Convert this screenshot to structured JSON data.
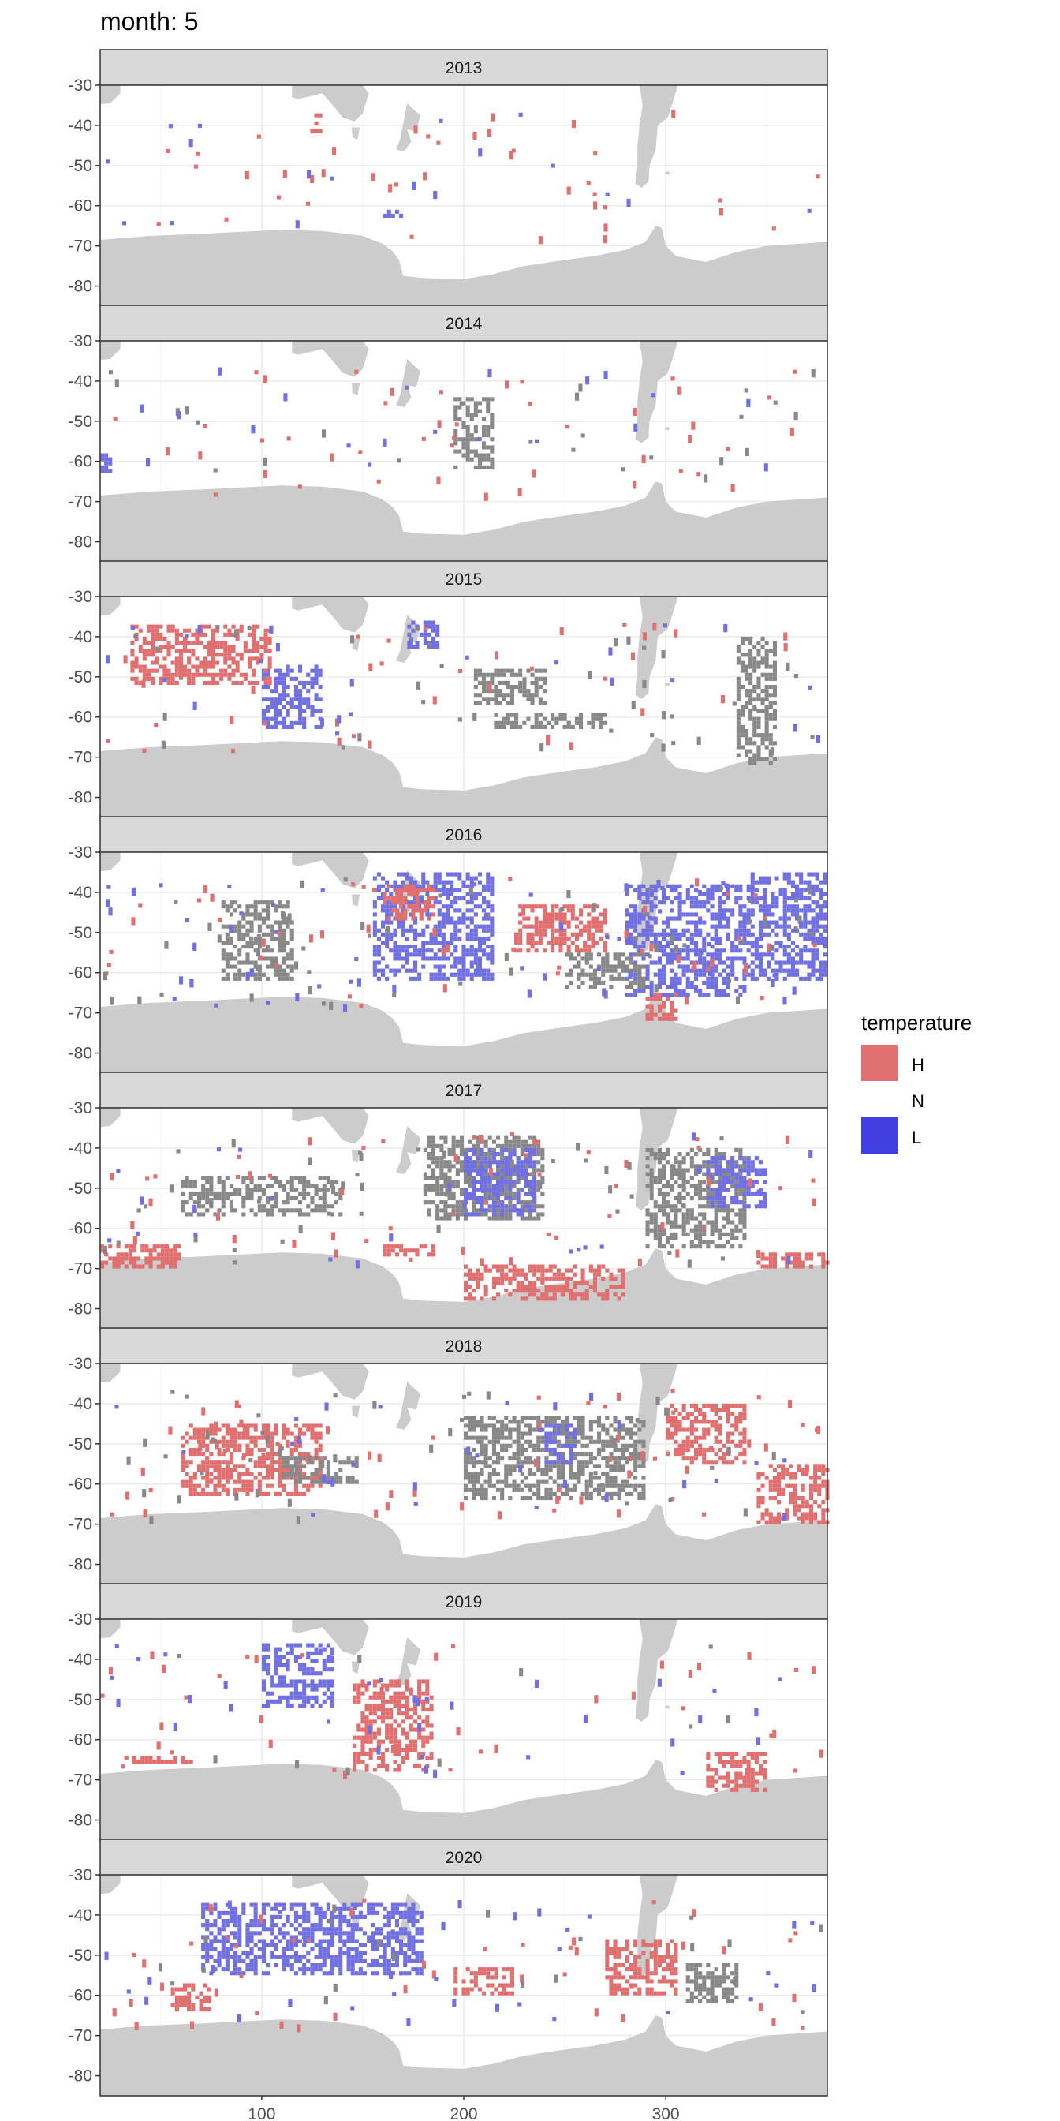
{
  "chart_data": {
    "type": "heatmap",
    "title": "month: 5",
    "facet_variable": "year",
    "facets": [
      "2013",
      "2014",
      "2015",
      "2016",
      "2017",
      "2018",
      "2019",
      "2020"
    ],
    "xlabel": "",
    "ylabel": "",
    "xlim": [
      20,
      380
    ],
    "ylim": [
      -85,
      -30
    ],
    "x_ticks": [
      100,
      200,
      300
    ],
    "y_ticks": [
      -30,
      -40,
      -50,
      -60,
      -70,
      -80
    ],
    "grid": true,
    "legend": {
      "title": "temperature",
      "position": "right",
      "entries": [
        {
          "key": "H",
          "label": "H",
          "color": "#E07070"
        },
        {
          "key": "N",
          "label": "N",
          "color": "#888888"
        },
        {
          "key": "L",
          "label": "L",
          "color": "#7070E0"
        }
      ]
    },
    "colors": {
      "land": "#CCCCCC",
      "strip": "#D9D9D9",
      "panel_border": "#333333",
      "grid": "#EBEBEB"
    },
    "regions": {
      "2013": [
        {
          "cat": "H",
          "lon": [
            48,
            54
          ],
          "lat": [
            -66,
            -64
          ]
        },
        {
          "cat": "H",
          "lon": [
            124,
            130
          ],
          "lat": [
            -42,
            -37
          ]
        },
        {
          "cat": "L",
          "lon": [
            160,
            170
          ],
          "lat": [
            -63,
            -61
          ]
        }
      ],
      "2014": [
        {
          "cat": "N",
          "lon": [
            195,
            215
          ],
          "lat": [
            -62,
            -44
          ]
        },
        {
          "cat": "L",
          "lon": [
            20,
            26
          ],
          "lat": [
            -63,
            -58
          ]
        }
      ],
      "2015": [
        {
          "cat": "L",
          "lon": [
            172,
            188
          ],
          "lat": [
            -43,
            -36
          ]
        },
        {
          "cat": "L",
          "lon": [
            100,
            130
          ],
          "lat": [
            -63,
            -47
          ]
        },
        {
          "cat": "H",
          "lon": [
            35,
            105
          ],
          "lat": [
            -52,
            -37
          ]
        },
        {
          "cat": "N",
          "lon": [
            205,
            240
          ],
          "lat": [
            -57,
            -48
          ]
        },
        {
          "cat": "N",
          "lon": [
            215,
            270
          ],
          "lat": [
            -63,
            -59
          ]
        },
        {
          "cat": "N",
          "lon": [
            335,
            355
          ],
          "lat": [
            -72,
            -40
          ]
        }
      ],
      "2016": [
        {
          "cat": "L",
          "lon": [
            155,
            215
          ],
          "lat": [
            -62,
            -35
          ]
        },
        {
          "cat": "L",
          "lon": [
            280,
            340
          ],
          "lat": [
            -66,
            -38
          ]
        },
        {
          "cat": "H",
          "lon": [
            160,
            185
          ],
          "lat": [
            -47,
            -38
          ]
        },
        {
          "cat": "H",
          "lon": [
            225,
            270
          ],
          "lat": [
            -55,
            -43
          ]
        },
        {
          "cat": "H",
          "lon": [
            290,
            305
          ],
          "lat": [
            -72,
            -65
          ]
        },
        {
          "cat": "N",
          "lon": [
            80,
            115
          ],
          "lat": [
            -62,
            -42
          ]
        },
        {
          "cat": "N",
          "lon": [
            250,
            290
          ],
          "lat": [
            -64,
            -55
          ]
        },
        {
          "cat": "L",
          "lon": [
            340,
            380
          ],
          "lat": [
            -62,
            -35
          ]
        }
      ],
      "2017": [
        {
          "cat": "H",
          "lon": [
            200,
            280
          ],
          "lat": [
            -78,
            -69
          ]
        },
        {
          "cat": "H",
          "lon": [
            20,
            60
          ],
          "lat": [
            -70,
            -64
          ]
        },
        {
          "cat": "H",
          "lon": [
            345,
            380
          ],
          "lat": [
            -70,
            -66
          ]
        },
        {
          "cat": "H",
          "lon": [
            160,
            185
          ],
          "lat": [
            -67,
            -64
          ]
        },
        {
          "cat": "N",
          "lon": [
            180,
            240
          ],
          "lat": [
            -58,
            -37
          ]
        },
        {
          "cat": "N",
          "lon": [
            60,
            140
          ],
          "lat": [
            -57,
            -47
          ]
        },
        {
          "cat": "N",
          "lon": [
            290,
            340
          ],
          "lat": [
            -65,
            -40
          ]
        },
        {
          "cat": "L",
          "lon": [
            200,
            235
          ],
          "lat": [
            -57,
            -40
          ]
        },
        {
          "cat": "L",
          "lon": [
            320,
            350
          ],
          "lat": [
            -55,
            -42
          ]
        }
      ],
      "2018": [
        {
          "cat": "H",
          "lon": [
            345,
            380
          ],
          "lat": [
            -70,
            -55
          ]
        },
        {
          "cat": "H",
          "lon": [
            300,
            340
          ],
          "lat": [
            -55,
            -40
          ]
        },
        {
          "cat": "H",
          "lon": [
            60,
            130
          ],
          "lat": [
            -63,
            -45
          ]
        },
        {
          "cat": "N",
          "lon": [
            110,
            150
          ],
          "lat": [
            -60,
            -53
          ]
        },
        {
          "cat": "N",
          "lon": [
            200,
            290
          ],
          "lat": [
            -64,
            -43
          ]
        },
        {
          "cat": "L",
          "lon": [
            240,
            255
          ],
          "lat": [
            -55,
            -45
          ]
        }
      ],
      "2019": [
        {
          "cat": "H",
          "lon": [
            320,
            350
          ],
          "lat": [
            -73,
            -63
          ]
        },
        {
          "cat": "H",
          "lon": [
            30,
            65
          ],
          "lat": [
            -66,
            -64
          ]
        },
        {
          "cat": "H",
          "lon": [
            145,
            185
          ],
          "lat": [
            -68,
            -45
          ]
        },
        {
          "cat": "L",
          "lon": [
            100,
            135
          ],
          "lat": [
            -52,
            -36
          ]
        }
      ],
      "2020": [
        {
          "cat": "H",
          "lon": [
            270,
            305
          ],
          "lat": [
            -60,
            -46
          ]
        },
        {
          "cat": "H",
          "lon": [
            195,
            225
          ],
          "lat": [
            -60,
            -53
          ]
        },
        {
          "cat": "H",
          "lon": [
            55,
            75
          ],
          "lat": [
            -64,
            -57
          ]
        },
        {
          "cat": "L",
          "lon": [
            70,
            180
          ],
          "lat": [
            -55,
            -37
          ]
        },
        {
          "cat": "N",
          "lon": [
            310,
            335
          ],
          "lat": [
            -62,
            -52
          ]
        }
      ]
    },
    "scatter_counts": {
      "2013": [
        40,
        0,
        18
      ],
      "2014": [
        45,
        25,
        20
      ],
      "2015": [
        40,
        40,
        25
      ],
      "2016": [
        55,
        60,
        60
      ],
      "2017": [
        55,
        45,
        25
      ],
      "2018": [
        65,
        50,
        30
      ],
      "2019": [
        40,
        10,
        35
      ],
      "2020": [
        45,
        20,
        35
      ]
    }
  }
}
